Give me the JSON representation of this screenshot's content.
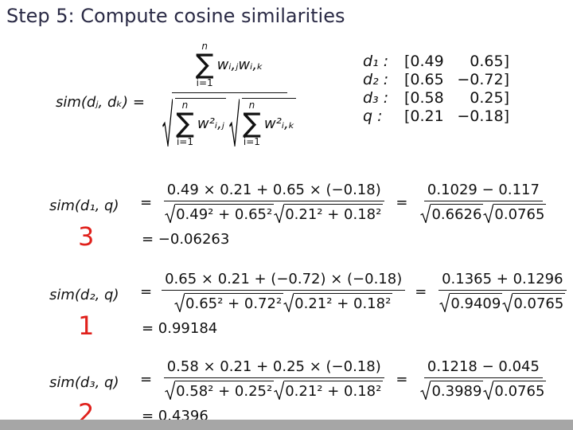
{
  "title": "Step 5: Compute cosine similarities",
  "symbols": {
    "sum": "∑",
    "equals": "=",
    "upper": "n",
    "lower": "i=1"
  },
  "general": {
    "lhs": "sim(dⱼ, dₖ)",
    "numerator_term": "wᵢ,ⱼwᵢ,ₖ",
    "denominator_terms": [
      "w²ᵢ,ⱼ",
      "w²ᵢ,ₖ"
    ]
  },
  "vectors": [
    {
      "label": "d₁ :",
      "values": [
        "[0.49",
        "0.65]"
      ]
    },
    {
      "label": "d₂ :",
      "values": [
        "[0.65",
        "−0.72]"
      ]
    },
    {
      "label": "d₃ :",
      "values": [
        "[0.58",
        "0.25]"
      ]
    },
    {
      "label": "q :",
      "values": [
        "[0.21",
        "−0.18]"
      ]
    }
  ],
  "results": [
    {
      "lhs": "sim(d₁, q)",
      "rank": 3,
      "numerator": "0.49 × 0.21 + 0.65 × (−0.18)",
      "radicands": [
        "0.49² + 0.65²",
        "0.21² + 0.18²"
      ],
      "simplified_numerator": "0.1029 − 0.117",
      "simplified_radicands": [
        "0.6626",
        "0.0765"
      ],
      "result": "= −0.06263"
    },
    {
      "lhs": "sim(d₂, q)",
      "rank": 1,
      "numerator": "0.65 × 0.21 + (−0.72) × (−0.18)",
      "radicands": [
        "0.65² + 0.72²",
        "0.21² + 0.18²"
      ],
      "simplified_numerator": "0.1365 + 0.1296",
      "simplified_radicands": [
        "0.9409",
        "0.0765"
      ],
      "result": "= 0.99184"
    },
    {
      "lhs": "sim(d₃, q)",
      "rank": 2,
      "numerator": "0.58 × 0.21 + 0.25 × (−0.18)",
      "radicands": [
        "0.58² + 0.25²",
        "0.21² + 0.18²"
      ],
      "simplified_numerator": "0.1218 − 0.045",
      "simplified_radicands": [
        "0.3989",
        "0.0765"
      ],
      "result": "= 0.4396"
    }
  ]
}
